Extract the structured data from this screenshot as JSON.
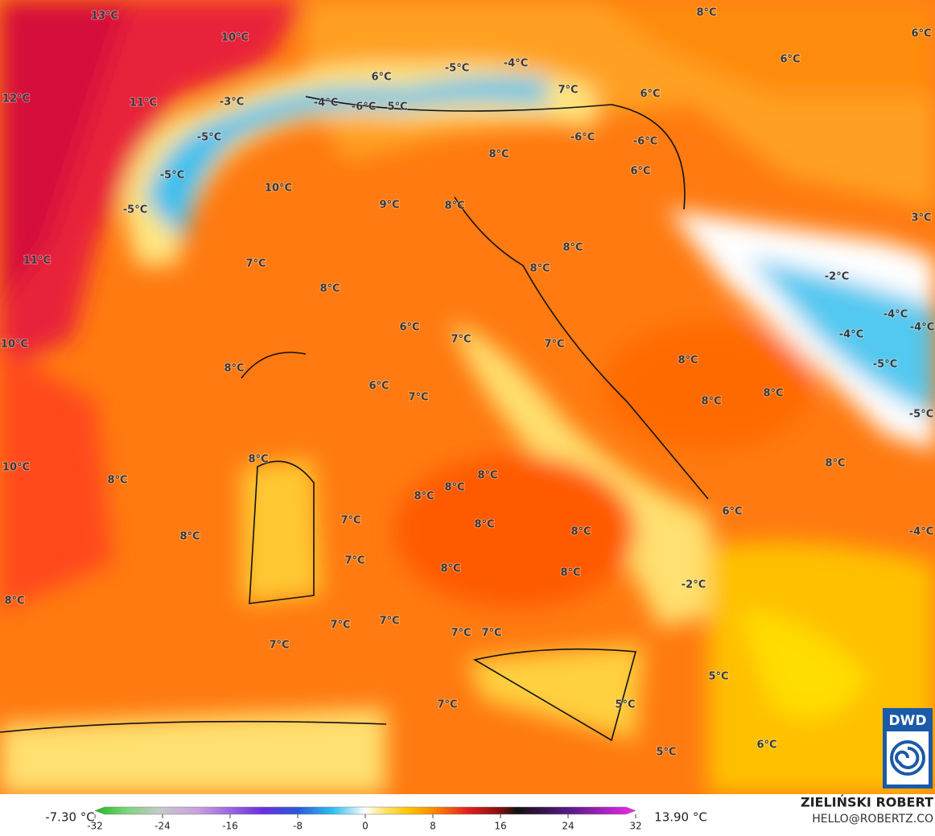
{
  "map_labels": [
    "13°C",
    "10°C",
    "12°C",
    "11°C",
    "-3°C",
    "-4°C",
    "-6°C",
    "5°C",
    "6°C",
    "-5°C",
    "-4°C",
    "7°C",
    "6°C",
    "6°C",
    "8°C",
    "6°C",
    "-5°C",
    "-6°C",
    "-6°C",
    "8°C",
    "-5°C",
    "6°C",
    "10°C",
    "9°C",
    "-5°C",
    "8°C",
    "3°C",
    "11°C",
    "7°C",
    "8°C",
    "8°C",
    "8°C",
    "-2°C",
    "-4°C",
    "-4°C",
    "-4°C",
    "10°C",
    "6°C",
    "7°C",
    "7°C",
    "8°C",
    "-5°C",
    "8°C",
    "6°C",
    "7°C",
    "8°C",
    "8°C",
    "-5°C",
    "10°C",
    "8°C",
    "8°C",
    "8°C",
    "8°C",
    "8°C",
    "8°C",
    "6°C",
    "7°C",
    "8°C",
    "8°C",
    "8°C",
    "-4°C",
    "7°C",
    "8°C",
    "8°C",
    "-2°C",
    "8°C",
    "7°C",
    "7°C",
    "7°C",
    "7°C",
    "7°C",
    "5°C",
    "7°C",
    "5°C",
    "6°C",
    "5°C"
  ],
  "colorbar": {
    "min_label": "-7.30 °C",
    "max_label": "13.90 °C",
    "range": [
      -32,
      32
    ],
    "ticks": [
      -32,
      -24,
      -16,
      -8,
      0,
      8,
      16,
      24,
      32
    ]
  },
  "credit": {
    "name": "ZIELIŃSKI ROBERT",
    "contact": "HELLO@ROBERTZ.CO"
  },
  "logo": "DWD"
}
